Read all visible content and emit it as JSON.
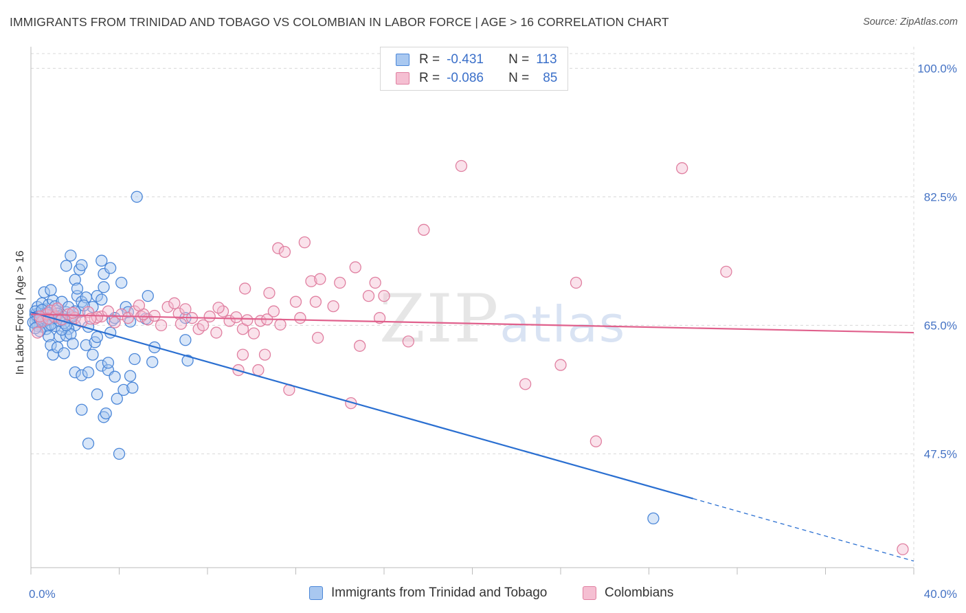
{
  "header": {
    "title": "IMMIGRANTS FROM TRINIDAD AND TOBAGO VS COLOMBIAN IN LABOR FORCE | AGE > 16 CORRELATION CHART",
    "source": "Source: ZipAtlas.com"
  },
  "watermark": {
    "zip": "ZIP",
    "atlas": "atlas"
  },
  "legend": {
    "rows": [
      {
        "r_label": "R =",
        "r_value": "-0.431",
        "n_label": "N =",
        "n_value": "113"
      },
      {
        "r_label": "R =",
        "r_value": "-0.086",
        "n_label": "N =",
        "n_value": "85"
      }
    ]
  },
  "bottom_legend": {
    "series1": "Immigrants from Trinidad and Tobago",
    "series2": "Colombians"
  },
  "chart_data": {
    "type": "scatter",
    "title": "IMMIGRANTS FROM TRINIDAD AND TOBAGO VS COLOMBIAN IN LABOR FORCE | AGE > 16 CORRELATION CHART",
    "xlabel": "",
    "ylabel": "In Labor Force | Age > 16",
    "xlim": [
      0,
      40
    ],
    "ylim": [
      32,
      102
    ],
    "x_tick_labels": [
      "0.0%",
      "40.0%"
    ],
    "y_ticks": [
      47.5,
      65.0,
      82.5,
      100.0
    ],
    "y_tick_labels": [
      "47.5%",
      "65.0%",
      "82.5%",
      "100.0%"
    ],
    "colors": {
      "blue": "#4a86d8",
      "blue_fill": "#a9c8f0",
      "blue_line": "#2a6fd1",
      "pink": "#e07fa0",
      "pink_fill": "#f5bfd2",
      "pink_line": "#e0608c",
      "grid": "#d8d8d8",
      "axis": "#bbbbbb"
    },
    "series": [
      {
        "name": "Immigrants from Trinidad and Tobago",
        "color": "blue",
        "trend": {
          "x0": 0,
          "y0": 66.8,
          "x1": 30.0,
          "y1": 41.4,
          "dash_to_x": 40,
          "dash_to_y": 32.9
        },
        "points": [
          [
            0.2,
            66.5
          ],
          [
            0.3,
            65.8
          ],
          [
            0.4,
            65.2
          ],
          [
            0.5,
            66.0
          ],
          [
            0.5,
            64.8
          ],
          [
            0.6,
            65.5
          ],
          [
            0.7,
            66.3
          ],
          [
            0.8,
            65.0
          ],
          [
            0.2,
            65.5
          ],
          [
            0.3,
            64.9
          ],
          [
            0.4,
            66.8
          ],
          [
            0.6,
            67.2
          ],
          [
            0.7,
            64.5
          ],
          [
            0.9,
            65.8
          ],
          [
            1.0,
            66.5
          ],
          [
            1.1,
            64.9
          ],
          [
            0.3,
            67.5
          ],
          [
            0.5,
            68.0
          ],
          [
            0.8,
            67.8
          ],
          [
            1.0,
            68.4
          ],
          [
            1.2,
            67.0
          ],
          [
            1.3,
            66.2
          ],
          [
            1.5,
            65.9
          ],
          [
            1.6,
            66.8
          ],
          [
            0.6,
            69.5
          ],
          [
            0.9,
            69.8
          ],
          [
            1.1,
            67.6
          ],
          [
            1.4,
            68.2
          ],
          [
            1.7,
            67.5
          ],
          [
            1.8,
            66.1
          ],
          [
            2.0,
            65.0
          ],
          [
            2.2,
            66.8
          ],
          [
            0.8,
            63.5
          ],
          [
            0.9,
            62.3
          ],
          [
            1.0,
            61.0
          ],
          [
            1.2,
            62.0
          ],
          [
            1.3,
            63.5
          ],
          [
            1.5,
            61.2
          ],
          [
            1.7,
            64.5
          ],
          [
            1.6,
            63.6
          ],
          [
            1.8,
            63.8
          ],
          [
            1.9,
            62.5
          ],
          [
            2.1,
            69.0
          ],
          [
            2.3,
            68.2
          ],
          [
            2.5,
            68.8
          ],
          [
            2.8,
            67.5
          ],
          [
            3.0,
            69.0
          ],
          [
            3.2,
            68.5
          ],
          [
            1.6,
            73.1
          ],
          [
            1.8,
            74.5
          ],
          [
            2.0,
            71.2
          ],
          [
            2.1,
            70.0
          ],
          [
            2.2,
            72.6
          ],
          [
            2.3,
            73.2
          ],
          [
            3.2,
            73.8
          ],
          [
            3.3,
            70.2
          ],
          [
            3.3,
            72.0
          ],
          [
            3.6,
            72.8
          ],
          [
            4.1,
            70.8
          ],
          [
            4.3,
            67.5
          ],
          [
            4.4,
            66.8
          ],
          [
            4.5,
            65.5
          ],
          [
            5.3,
            69.0
          ],
          [
            5.2,
            65.9
          ],
          [
            2.5,
            62.3
          ],
          [
            2.6,
            64.8
          ],
          [
            2.8,
            61.0
          ],
          [
            2.9,
            62.7
          ],
          [
            3.0,
            63.4
          ],
          [
            3.2,
            59.5
          ],
          [
            3.5,
            58.9
          ],
          [
            3.6,
            64.0
          ],
          [
            3.7,
            65.7
          ],
          [
            3.8,
            66.0
          ],
          [
            3.5,
            59.9
          ],
          [
            3.8,
            58.0
          ],
          [
            3.9,
            55.0
          ],
          [
            4.2,
            56.2
          ],
          [
            4.5,
            58.1
          ],
          [
            4.6,
            56.5
          ],
          [
            3.0,
            55.6
          ],
          [
            3.3,
            52.5
          ],
          [
            3.4,
            53.0
          ],
          [
            2.3,
            53.5
          ],
          [
            2.6,
            48.9
          ],
          [
            4.0,
            47.5
          ],
          [
            4.8,
            82.5
          ],
          [
            5.6,
            62.0
          ],
          [
            2.0,
            58.6
          ],
          [
            2.3,
            58.2
          ],
          [
            2.6,
            58.6
          ],
          [
            4.7,
            60.4
          ],
          [
            7.0,
            63.0
          ],
          [
            7.1,
            60.2
          ],
          [
            7.0,
            66.0
          ],
          [
            5.5,
            60.0
          ],
          [
            0.4,
            64.2
          ],
          [
            0.6,
            66.0
          ],
          [
            1.4,
            64.4
          ],
          [
            1.5,
            65.3
          ],
          [
            0.2,
            66.9
          ],
          [
            0.3,
            66.2
          ],
          [
            0.7,
            65.7
          ],
          [
            1.2,
            66.6
          ],
          [
            0.9,
            65.1
          ],
          [
            1.1,
            66.0
          ],
          [
            1.3,
            65.6
          ],
          [
            1.6,
            65.0
          ],
          [
            1.9,
            66.2
          ],
          [
            2.0,
            66.9
          ],
          [
            2.4,
            67.7
          ],
          [
            28.2,
            38.7
          ],
          [
            0.1,
            65.4
          ],
          [
            0.2,
            64.6
          ],
          [
            0.4,
            65.9
          ],
          [
            0.5,
            67.1
          ],
          [
            0.8,
            66.7
          ]
        ]
      },
      {
        "name": "Colombians",
        "color": "pink",
        "trend": {
          "x0": 0,
          "y0": 66.5,
          "x1": 40,
          "y1": 64.0
        },
        "points": [
          [
            0.3,
            64.0
          ],
          [
            0.5,
            65.5
          ],
          [
            0.7,
            66.5
          ],
          [
            0.9,
            67.0
          ],
          [
            1.1,
            66.2
          ],
          [
            1.4,
            65.8
          ],
          [
            1.7,
            66.5
          ],
          [
            2.0,
            66.0
          ],
          [
            2.3,
            65.5
          ],
          [
            2.6,
            66.8
          ],
          [
            2.9,
            65.9
          ],
          [
            3.2,
            66.2
          ],
          [
            3.5,
            66.9
          ],
          [
            3.8,
            65.4
          ],
          [
            4.1,
            66.5
          ],
          [
            4.4,
            66.0
          ],
          [
            4.7,
            66.9
          ],
          [
            5.0,
            66.2
          ],
          [
            5.3,
            65.8
          ],
          [
            5.6,
            66.3
          ],
          [
            5.9,
            65.0
          ],
          [
            6.2,
            67.5
          ],
          [
            6.5,
            68.0
          ],
          [
            6.7,
            66.6
          ],
          [
            7.0,
            67.2
          ],
          [
            7.3,
            66.0
          ],
          [
            7.6,
            64.5
          ],
          [
            7.8,
            65.0
          ],
          [
            8.1,
            66.2
          ],
          [
            8.4,
            64.0
          ],
          [
            8.7,
            66.9
          ],
          [
            9.0,
            65.6
          ],
          [
            9.3,
            66.1
          ],
          [
            9.6,
            64.5
          ],
          [
            9.8,
            65.7
          ],
          [
            10.1,
            63.9
          ],
          [
            10.4,
            65.6
          ],
          [
            10.7,
            65.8
          ],
          [
            11.0,
            66.9
          ],
          [
            11.3,
            65.1
          ],
          [
            9.4,
            58.9
          ],
          [
            9.7,
            70.0
          ],
          [
            9.6,
            61.0
          ],
          [
            10.3,
            58.9
          ],
          [
            10.6,
            61.0
          ],
          [
            10.8,
            69.4
          ],
          [
            11.2,
            75.5
          ],
          [
            11.5,
            75.0
          ],
          [
            11.7,
            56.2
          ],
          [
            12.0,
            68.2
          ],
          [
            12.2,
            66.0
          ],
          [
            12.4,
            76.3
          ],
          [
            12.7,
            71.0
          ],
          [
            12.9,
            68.2
          ],
          [
            13.0,
            63.3
          ],
          [
            13.1,
            71.3
          ],
          [
            13.7,
            67.6
          ],
          [
            14.0,
            70.8
          ],
          [
            14.5,
            54.4
          ],
          [
            14.7,
            72.9
          ],
          [
            14.9,
            62.2
          ],
          [
            15.3,
            69.0
          ],
          [
            15.6,
            70.8
          ],
          [
            15.8,
            66.0
          ],
          [
            16.0,
            69.0
          ],
          [
            17.1,
            62.8
          ],
          [
            17.8,
            78.0
          ],
          [
            19.5,
            86.7
          ],
          [
            22.4,
            57.0
          ],
          [
            24.0,
            59.6
          ],
          [
            24.7,
            70.8
          ],
          [
            25.6,
            49.2
          ],
          [
            29.5,
            86.4
          ],
          [
            31.5,
            72.3
          ],
          [
            39.5,
            34.5
          ],
          [
            1.2,
            67.3
          ],
          [
            3.0,
            66.1
          ],
          [
            5.1,
            66.5
          ],
          [
            6.8,
            65.2
          ],
          [
            8.5,
            67.4
          ],
          [
            0.4,
            66.2
          ],
          [
            0.8,
            65.9
          ],
          [
            1.9,
            66.7
          ],
          [
            2.7,
            65.9
          ],
          [
            4.9,
            67.7
          ]
        ]
      }
    ]
  }
}
